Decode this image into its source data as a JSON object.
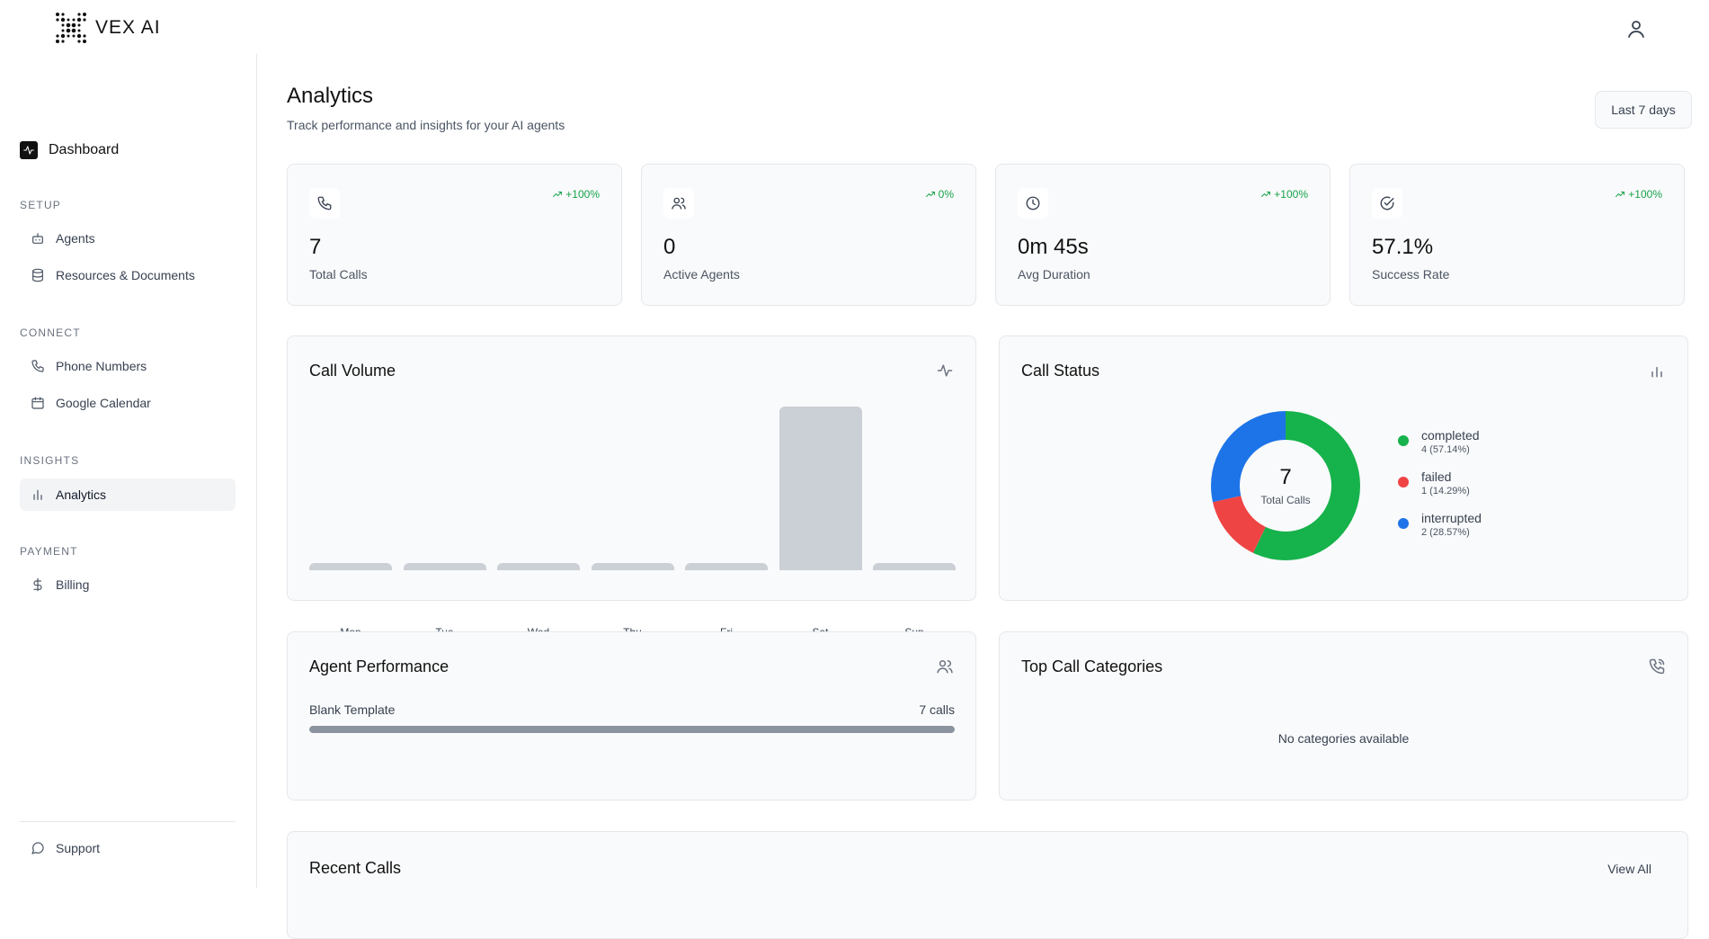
{
  "brand": {
    "name": "VEX AI"
  },
  "sidebar": {
    "dashboard": "Dashboard",
    "sections": [
      {
        "title": "SETUP",
        "items": [
          {
            "label": "Agents",
            "icon": "bot-icon"
          },
          {
            "label": "Resources & Documents",
            "icon": "database-icon"
          }
        ]
      },
      {
        "title": "CONNECT",
        "items": [
          {
            "label": "Phone Numbers",
            "icon": "phone-icon"
          },
          {
            "label": "Google Calendar",
            "icon": "calendar-icon"
          }
        ]
      },
      {
        "title": "INSIGHTS",
        "items": [
          {
            "label": "Analytics",
            "icon": "bar-chart-icon",
            "active": true
          }
        ]
      },
      {
        "title": "PAYMENT",
        "items": [
          {
            "label": "Billing",
            "icon": "dollar-icon"
          }
        ]
      }
    ],
    "support": "Support"
  },
  "header": {
    "title": "Analytics",
    "subtitle": "Track performance and insights for your AI agents",
    "range": "Last 7 days"
  },
  "stats": [
    {
      "value": "7",
      "label": "Total Calls",
      "trend": "+100%",
      "icon": "phone-icon"
    },
    {
      "value": "0",
      "label": "Active Agents",
      "trend": "0%",
      "icon": "users-icon"
    },
    {
      "value": "0m 45s",
      "label": "Avg Duration",
      "trend": "+100%",
      "icon": "clock-icon"
    },
    {
      "value": "57.1%",
      "label": "Success Rate",
      "trend": "+100%",
      "icon": "check-circle-icon"
    }
  ],
  "call_volume": {
    "title": "Call Volume",
    "chart_data": {
      "type": "bar",
      "categories": [
        "Mon",
        "Tue",
        "Wed",
        "Thu",
        "Fri",
        "Sat",
        "Sun"
      ],
      "values": [
        0,
        0,
        0,
        0,
        0,
        7,
        0
      ]
    }
  },
  "call_status": {
    "title": "Call Status",
    "total": "7",
    "total_label": "Total Calls",
    "legend": [
      {
        "name": "completed",
        "detail": "4 (57.14%)",
        "count": 4,
        "color": "#16b24b"
      },
      {
        "name": "failed",
        "detail": "1 (14.29%)",
        "count": 1,
        "color": "#ef4444"
      },
      {
        "name": "interrupted",
        "detail": "2 (28.57%)",
        "count": 2,
        "color": "#1d74e8"
      }
    ]
  },
  "agent_performance": {
    "title": "Agent Performance",
    "rows": [
      {
        "name": "Blank Template",
        "calls": "7 calls",
        "fraction": 1.0
      }
    ]
  },
  "top_categories": {
    "title": "Top Call Categories",
    "empty": "No categories available"
  },
  "recent_calls": {
    "title": "Recent Calls",
    "view_all": "View All"
  }
}
